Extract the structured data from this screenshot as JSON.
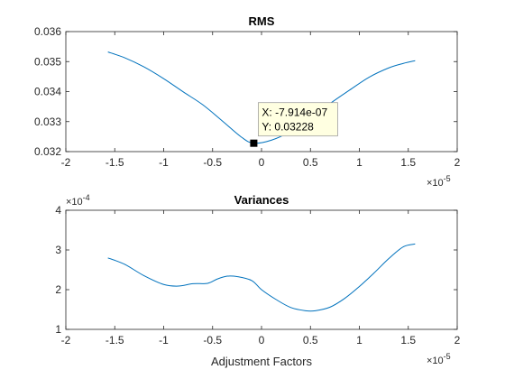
{
  "chart_data": [
    {
      "type": "line",
      "title": "RMS",
      "xlabel": "",
      "ylabel": "",
      "x_exponent_base": "×10",
      "x_exponent_power": "-5",
      "xlim": [
        -2,
        2
      ],
      "ylim": [
        0.032,
        0.036
      ],
      "xticks": [
        -2,
        -1.5,
        -1,
        -0.5,
        0,
        0.5,
        1,
        1.5,
        2
      ],
      "xtick_labels": [
        "-2",
        "-1.5",
        "-1",
        "-0.5",
        "0",
        "0.5",
        "1",
        "1.5",
        "2"
      ],
      "yticks": [
        0.032,
        0.033,
        0.034,
        0.035,
        0.036
      ],
      "ytick_labels": [
        "0.032",
        "0.033",
        "0.034",
        "0.035",
        "0.036"
      ],
      "line_color": "#0072BD",
      "x": [
        -1.57,
        -1.4,
        -1.2,
        -1.0,
        -0.8,
        -0.6,
        -0.4,
        -0.2,
        -0.08,
        0.1,
        0.3,
        0.5,
        0.7,
        0.9,
        1.1,
        1.3,
        1.45,
        1.57
      ],
      "y": [
        0.03532,
        0.03513,
        0.03482,
        0.03443,
        0.03399,
        0.03356,
        0.03302,
        0.03247,
        0.03228,
        0.03238,
        0.03268,
        0.03312,
        0.0336,
        0.03405,
        0.03448,
        0.03479,
        0.03494,
        0.03503
      ],
      "datatip": {
        "x": -0.07914,
        "y": 0.03228,
        "x_label": "X: -7.914e-07",
        "y_label": "Y: 0.03228"
      }
    },
    {
      "type": "line",
      "title": "Variances",
      "xlabel": "Adjustment Factors",
      "ylabel": "",
      "x_exponent_base": "×10",
      "x_exponent_power": "-5",
      "y_exponent_base": "×10",
      "y_exponent_power": "-4",
      "xlim": [
        -2,
        2
      ],
      "ylim": [
        1,
        4
      ],
      "xticks": [
        -2,
        -1.5,
        -1,
        -0.5,
        0,
        0.5,
        1,
        1.5,
        2
      ],
      "xtick_labels": [
        "-2",
        "-1.5",
        "-1",
        "-0.5",
        "0",
        "0.5",
        "1",
        "1.5",
        "2"
      ],
      "yticks": [
        1,
        2,
        3,
        4
      ],
      "ytick_labels": [
        "1",
        "2",
        "3",
        "4"
      ],
      "line_color": "#0072BD",
      "x": [
        -1.57,
        -1.4,
        -1.2,
        -1.0,
        -0.85,
        -0.7,
        -0.55,
        -0.45,
        -0.35,
        -0.25,
        -0.1,
        0.0,
        0.15,
        0.3,
        0.45,
        0.55,
        0.7,
        0.85,
        1.0,
        1.15,
        1.3,
        1.45,
        1.57
      ],
      "y": [
        2.8,
        2.64,
        2.35,
        2.13,
        2.09,
        2.15,
        2.16,
        2.27,
        2.34,
        2.33,
        2.23,
        2.0,
        1.75,
        1.55,
        1.47,
        1.47,
        1.56,
        1.78,
        2.08,
        2.42,
        2.78,
        3.08,
        3.15
      ]
    }
  ]
}
